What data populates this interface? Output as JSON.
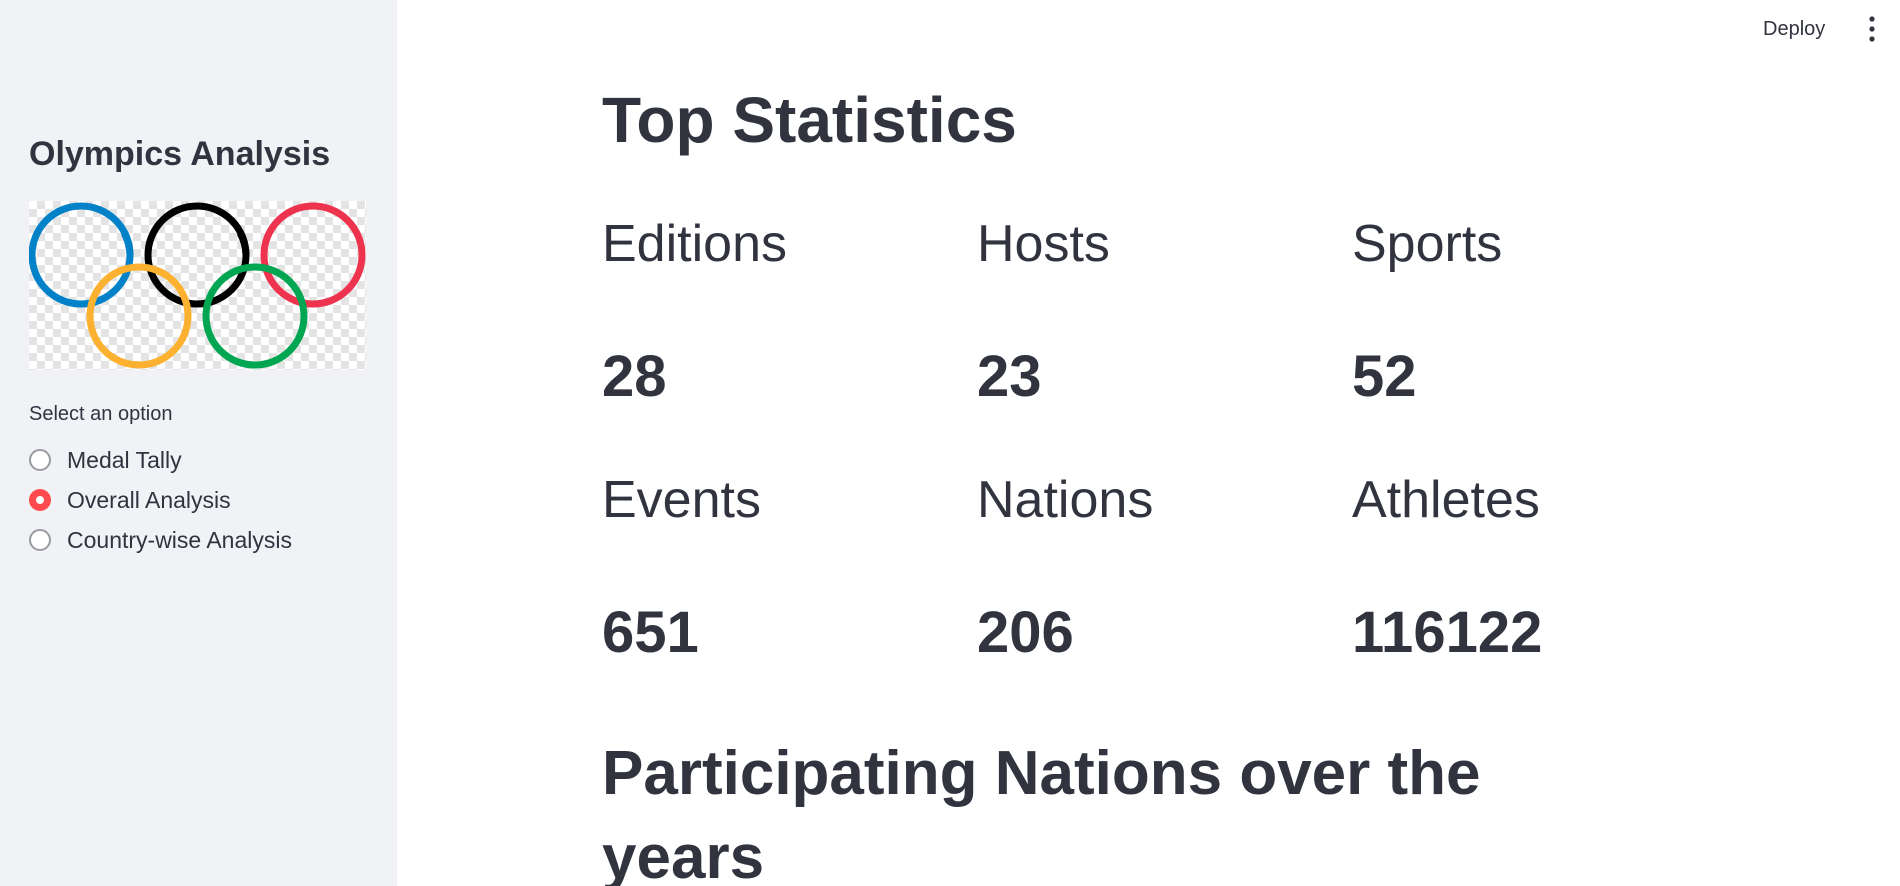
{
  "sidebar": {
    "title": "Olympics Analysis",
    "logo_icon": "olympic-rings-icon",
    "ring_colors": [
      "#0081c8",
      "#000000",
      "#ee334e",
      "#fcb131",
      "#00a651"
    ],
    "radio": {
      "label": "Select an option",
      "options": [
        {
          "label": "Medal Tally",
          "selected": false
        },
        {
          "label": "Overall Analysis",
          "selected": true
        },
        {
          "label": "Country-wise Analysis",
          "selected": false
        }
      ]
    }
  },
  "header": {
    "deploy_label": "Deploy",
    "menu_icon": "more-vertical-icon"
  },
  "main": {
    "title": "Top Statistics",
    "stats": [
      {
        "label": "Editions",
        "value": "28"
      },
      {
        "label": "Hosts",
        "value": "23"
      },
      {
        "label": "Sports",
        "value": "52"
      },
      {
        "label": "Events",
        "value": "651"
      },
      {
        "label": "Nations",
        "value": "206"
      },
      {
        "label": "Athletes",
        "value": "116122"
      }
    ],
    "section_title": "Participating Nations over the years"
  },
  "colors": {
    "accent": "#ff4b4b",
    "sidebar_bg": "#f0f2f6",
    "text": "#31333f"
  }
}
